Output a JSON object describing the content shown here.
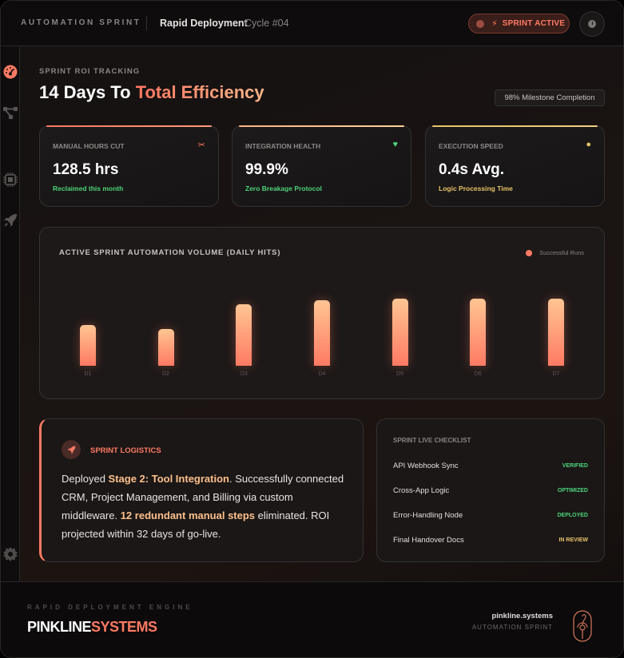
{
  "header": {
    "brand": "AUTOMATION SPRINT",
    "project": "Rapid Deployment",
    "cycle": "Cycle #04",
    "status_pill": {
      "icon": "bolt-icon",
      "label": "SPRINT ACTIVE"
    },
    "clock_button": {
      "icon": "clock-icon"
    }
  },
  "sidebar": {
    "items": [
      {
        "name": "dashboard",
        "icon": "gauge-icon",
        "active": true
      },
      {
        "name": "workflows",
        "icon": "flow-icon",
        "active": false
      },
      {
        "name": "hardware",
        "icon": "chip-icon",
        "active": false
      },
      {
        "name": "launch",
        "icon": "rocket-icon",
        "active": false
      }
    ],
    "settings": {
      "icon": "gear-icon"
    }
  },
  "page": {
    "eyebrow": "SPRINT ROI TRACKING",
    "title_main": "14 Days To ",
    "title_accent": "Total Efficiency",
    "milestone_badge": "98% Milestone Completion"
  },
  "stats": [
    {
      "label": "MANUAL HOURS CUT",
      "value": "128.5 hrs",
      "sub": "Reclaimed this month",
      "icon": "scissors-icon",
      "icon_glyph": "✂",
      "color": "#ff7a63",
      "sub_color": "#4ed37a"
    },
    {
      "label": "INTEGRATION HEALTH",
      "value": "99.9%",
      "sub": "Zero Breakage Protocol",
      "icon": "heart-pulse-icon",
      "icon_glyph": "♥",
      "color": "#4ed37a",
      "sub_color": "#4ed37a"
    },
    {
      "label": "EXECUTION SPEED",
      "value": "0.4s Avg.",
      "sub": "Logic Processing Time",
      "icon": "stopwatch-icon",
      "icon_glyph": "●",
      "color": "#e8c36a",
      "sub_color": "#e8c36a"
    }
  ],
  "chart": {
    "title": "ACTIVE SPRINT AUTOMATION VOLUME (DAILY HITS)",
    "legend": "Successful Runs"
  },
  "chart_data": {
    "type": "bar",
    "title": "ACTIVE SPRINT AUTOMATION VOLUME (DAILY HITS)",
    "categories": [
      "D1",
      "D2",
      "D3",
      "D4",
      "D5",
      "D6",
      "D7"
    ],
    "series": [
      {
        "name": "Successful Runs",
        "values": [
          50,
          45,
          75,
          80,
          82,
          82,
          82
        ],
        "color": "#ff7a63"
      }
    ],
    "xlabel": "",
    "ylabel": "",
    "ylim": [
      0,
      100
    ],
    "grid": false,
    "legend_position": "top-right"
  },
  "logistics": {
    "title": "SPRINT LOGISTICS",
    "icon": "rocket-icon",
    "text_1": "Deployed ",
    "bold_1": "Stage 2: Tool Integration",
    "text_2": ". Successfully connected CRM, Project Management, and Billing via custom middleware. ",
    "bold_2": "12 redundant manual steps",
    "text_3": " eliminated. ROI projected within 32 days of go-live."
  },
  "checklist": {
    "title": "SPRINT LIVE CHECKLIST",
    "items": [
      {
        "name": "API Webhook Sync",
        "status": "VERIFIED",
        "color": "#4ed37a"
      },
      {
        "name": "Cross-App Logic",
        "status": "OPTIMIZED",
        "color": "#4ed37a"
      },
      {
        "name": "Error-Handling Node",
        "status": "DEPLOYED",
        "color": "#4ed37a"
      },
      {
        "name": "Final Handover Docs",
        "status": "IN REVIEW",
        "color": "#e8c36a"
      }
    ]
  },
  "footer": {
    "eyebrow": "RAPID DEPLOYMENT ENGINE",
    "logo_a": "PINKLINE",
    "logo_b": "SYSTEMS",
    "domain": "pinkline.systems",
    "tagline": "AUTOMATION SPRINT"
  }
}
